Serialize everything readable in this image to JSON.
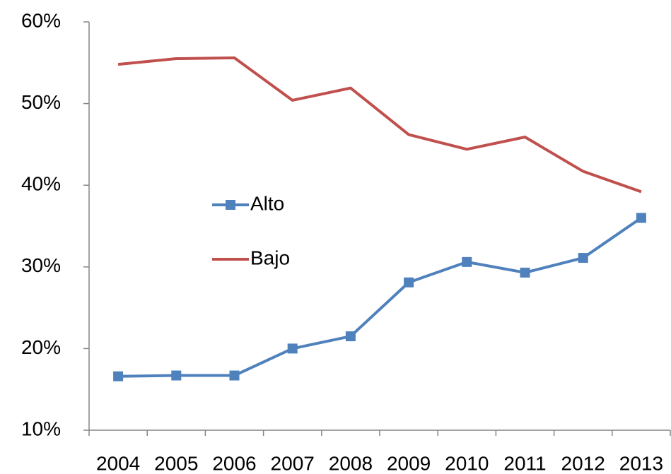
{
  "chart_data": {
    "type": "line",
    "categories": [
      "2004",
      "2005",
      "2006",
      "2007",
      "2008",
      "2009",
      "2010",
      "2011",
      "2012",
      "2013"
    ],
    "series": [
      {
        "name": "Alto",
        "color": "#4f81bd",
        "marker": "square",
        "values": [
          16.6,
          16.7,
          16.7,
          20.0,
          21.5,
          28.1,
          30.6,
          29.3,
          31.1,
          36.0
        ]
      },
      {
        "name": "Bajo",
        "color": "#c0504d",
        "marker": "none",
        "values": [
          54.8,
          55.5,
          55.6,
          50.4,
          51.9,
          46.2,
          44.4,
          45.9,
          41.7,
          39.2
        ]
      }
    ],
    "ylim": [
      10,
      60
    ],
    "yticks": [
      {
        "value": 10,
        "label": "10%"
      },
      {
        "value": 20,
        "label": "20%"
      },
      {
        "value": 30,
        "label": "30%"
      },
      {
        "value": 40,
        "label": "40%"
      },
      {
        "value": 50,
        "label": "50%"
      },
      {
        "value": 60,
        "label": "60%"
      }
    ],
    "grid": false,
    "legend": "center-left"
  }
}
